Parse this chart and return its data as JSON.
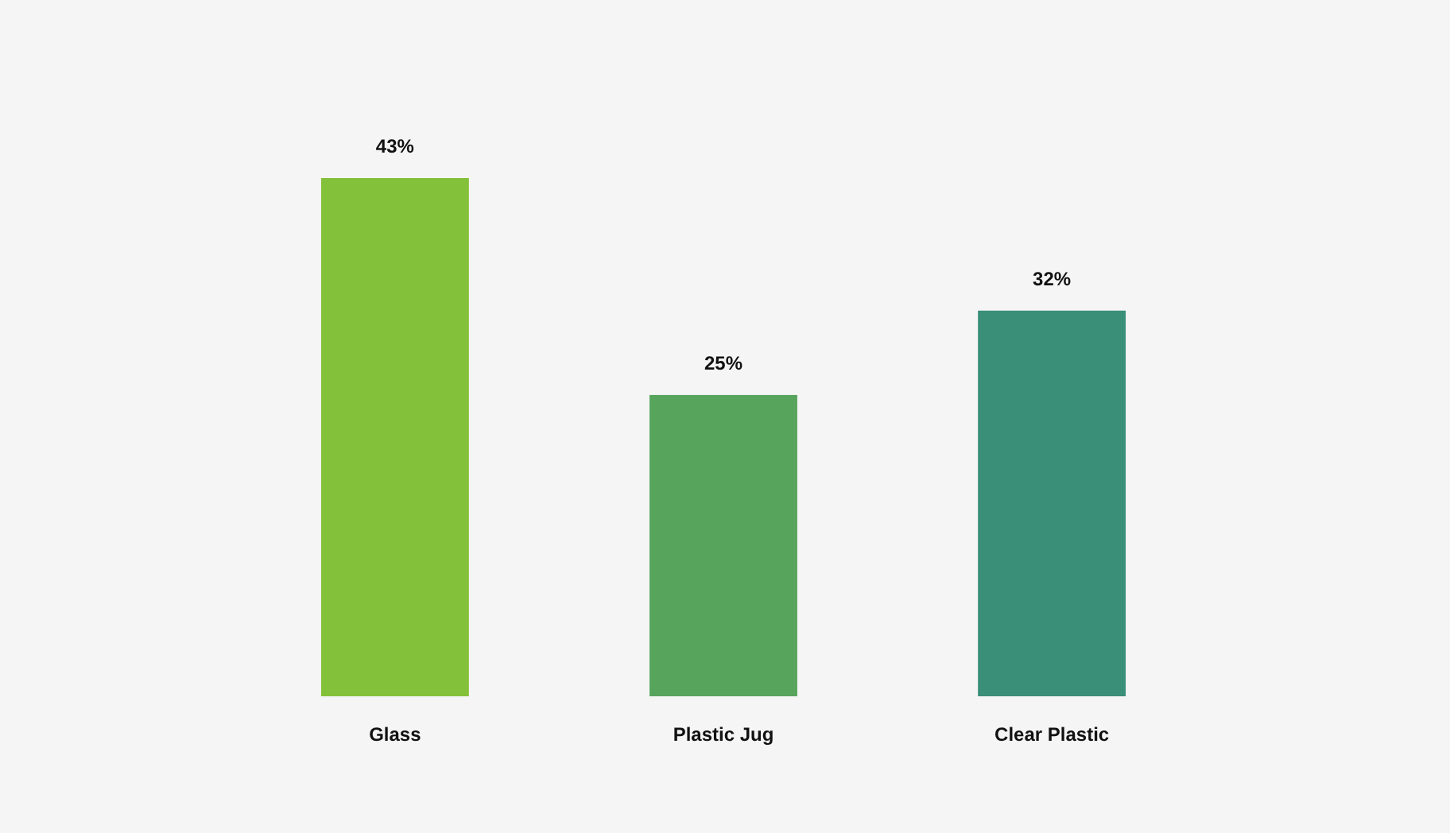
{
  "chart_data": {
    "type": "bar",
    "categories": [
      "Glass",
      "Plastic Jug",
      "Clear Plastic"
    ],
    "values": [
      43,
      25,
      32
    ],
    "colors": [
      "#84c13a",
      "#57a55c",
      "#3a8f79"
    ],
    "value_labels": [
      "43%",
      "25%",
      "32%"
    ]
  }
}
